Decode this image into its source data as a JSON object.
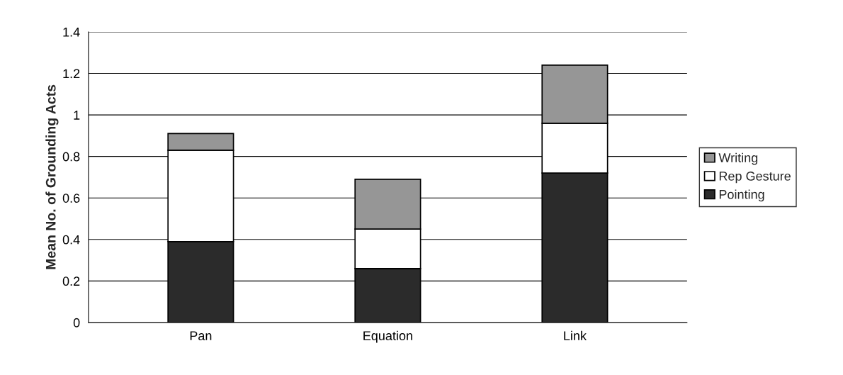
{
  "chart_data": {
    "type": "bar",
    "stacked": true,
    "ylabel": "Mean No. of Grounding Acts",
    "categories": [
      "Pan",
      "Equation",
      "Link"
    ],
    "series": [
      {
        "name": "Pointing",
        "color": "#2b2b2b",
        "values": [
          0.39,
          0.26,
          0.72
        ]
      },
      {
        "name": "Rep Gesture",
        "color": "#ffffff",
        "values": [
          0.44,
          0.19,
          0.24
        ]
      },
      {
        "name": "Writing",
        "color": "#969696",
        "values": [
          0.08,
          0.24,
          0.28
        ]
      }
    ],
    "ylim": [
      0,
      1.4
    ],
    "yticks": [
      0,
      0.2,
      0.4,
      0.6,
      0.8,
      1,
      1.2,
      1.4
    ],
    "grid": "y",
    "legend": "right"
  }
}
